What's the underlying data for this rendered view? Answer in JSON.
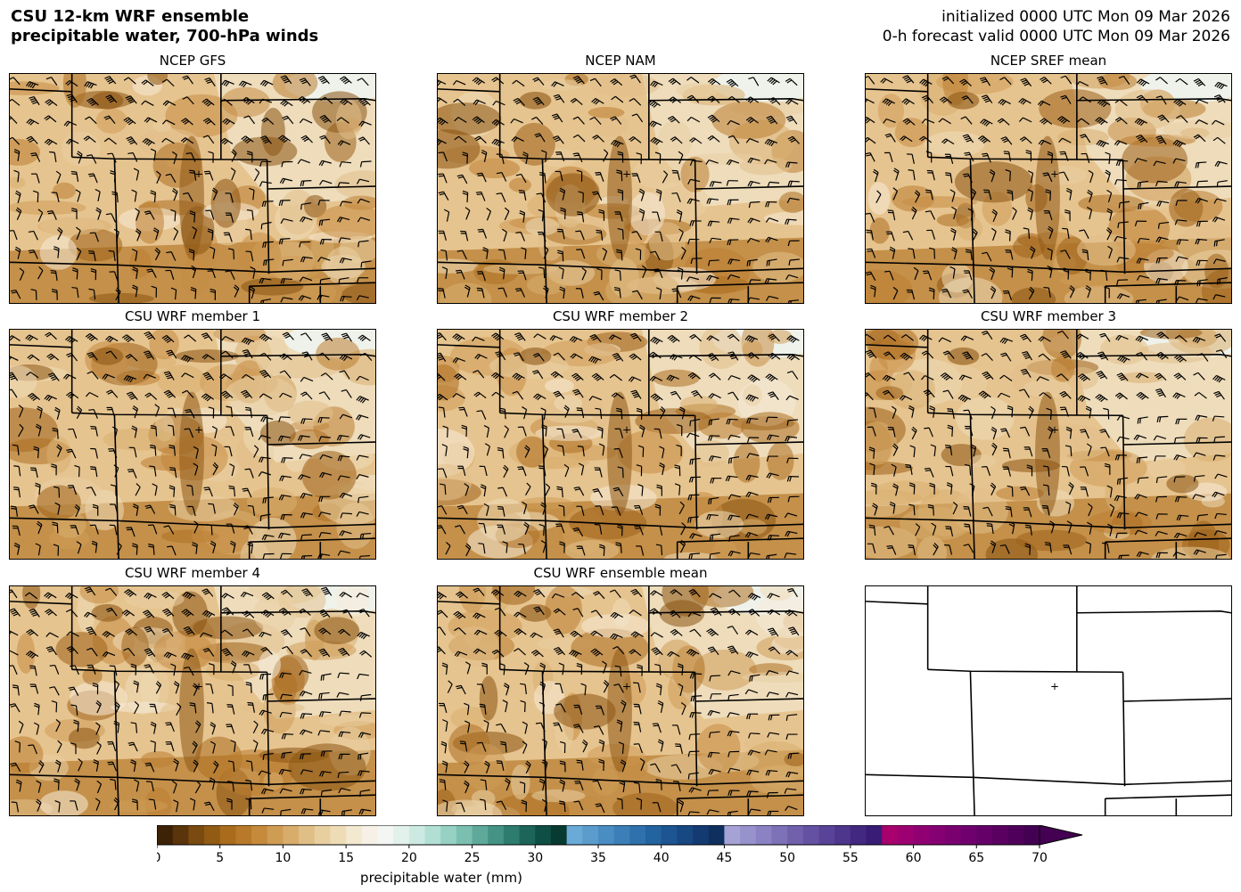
{
  "header": {
    "title_line1": "CSU 12-km WRF ensemble",
    "title_line2": "precipitable water, 700-hPa winds",
    "init_line": "initialized 0000 UTC Mon 09 Mar 2026",
    "valid_line": "0-h forecast valid 0000 UTC Mon 09 Mar 2026"
  },
  "panels": [
    {
      "title": "NCEP GFS",
      "filled": true,
      "seed": 11
    },
    {
      "title": "NCEP NAM",
      "filled": true,
      "seed": 23
    },
    {
      "title": "NCEP SREF mean",
      "filled": true,
      "seed": 37
    },
    {
      "title": "CSU WRF member 1",
      "filled": true,
      "seed": 41
    },
    {
      "title": "CSU WRF member 2",
      "filled": true,
      "seed": 53
    },
    {
      "title": "CSU WRF member 3",
      "filled": true,
      "seed": 67
    },
    {
      "title": "CSU WRF member 4",
      "filled": true,
      "seed": 71
    },
    {
      "title": "CSU WRF ensemble mean",
      "filled": true,
      "seed": 83
    },
    {
      "title": "",
      "filled": false,
      "seed": 97
    }
  ],
  "colorbar": {
    "label": "precipitable water (mm)",
    "min": 0,
    "max": 70,
    "extend": "max",
    "ticks": [
      "0",
      "5",
      "10",
      "15",
      "20",
      "25",
      "30",
      "35",
      "40",
      "45",
      "50",
      "55",
      "60",
      "65",
      "70"
    ],
    "colors": [
      "#3d2206",
      "#5a340b",
      "#7a4a10",
      "#925b14",
      "#a86c1c",
      "#b8792a",
      "#c58a3c",
      "#cf9c54",
      "#d8ad6b",
      "#e0bf86",
      "#e8cf9f",
      "#eedcb7",
      "#f3e8d0",
      "#f6f0e6",
      "#f4f6f4",
      "#e2f1ec",
      "#cdeae2",
      "#b2dfd4",
      "#96d1c4",
      "#7bbfb1",
      "#5ea99a",
      "#449384",
      "#2e7c6d",
      "#1c6558",
      "#0f4e44",
      "#073a31",
      "#6aaad6",
      "#5c9ccd",
      "#4a8dc2",
      "#3c7fb8",
      "#2e71ad",
      "#2363a0",
      "#1c5592",
      "#174882",
      "#133b71",
      "#0f2f5e",
      "#a5a3d6",
      "#9792cc",
      "#8a82c2",
      "#7d71b8",
      "#7161ad",
      "#6551a2",
      "#594398",
      "#4e358d",
      "#432881",
      "#381c76",
      "#a8006d",
      "#9d0070",
      "#910072",
      "#850072",
      "#7a0070",
      "#6f006d",
      "#640068",
      "#590061",
      "#4f005a",
      "#440052"
    ]
  }
}
